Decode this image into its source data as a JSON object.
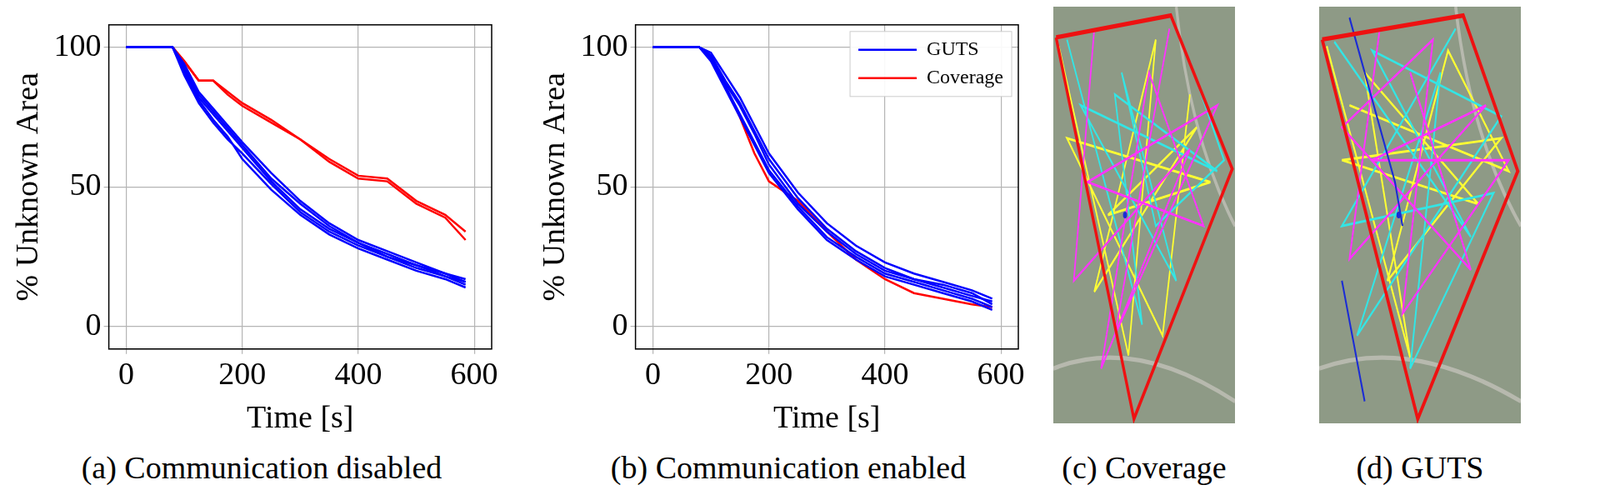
{
  "chart_data": [
    {
      "type": "line",
      "title": "(a) Communication disabled",
      "x_label": "Time [s]",
      "y_label": "% Unknown Area",
      "x": [
        0,
        80,
        100,
        125,
        150,
        175,
        200,
        250,
        300,
        350,
        400,
        450,
        500,
        550,
        585
      ],
      "xlim": [
        -30,
        630
      ],
      "xticks": [
        0,
        200,
        400,
        600
      ],
      "ylim": [
        -8,
        108
      ],
      "yticks": [
        0,
        50,
        100
      ],
      "grid": true,
      "series": [
        {
          "name": "GUTS",
          "color": "#0000ff",
          "values": [
            100,
            100,
            92,
            82,
            76,
            70,
            64,
            52,
            42,
            35,
            30,
            26,
            22,
            19,
            16
          ]
        },
        {
          "name": "GUTS",
          "color": "#0000ff",
          "values": [
            100,
            100,
            90,
            80,
            73,
            67,
            62,
            51,
            41,
            34,
            29,
            25,
            21,
            18,
            15
          ]
        },
        {
          "name": "GUTS",
          "color": "#0000ff",
          "values": [
            100,
            100,
            94,
            84,
            78,
            72,
            66,
            55,
            45,
            37,
            31,
            27,
            23,
            19,
            17
          ]
        },
        {
          "name": "GUTS",
          "color": "#0000ff",
          "values": [
            100,
            100,
            91,
            81,
            74,
            68,
            60,
            49,
            40,
            33,
            28,
            24,
            20,
            17,
            14
          ]
        },
        {
          "name": "GUTS",
          "color": "#0000ff",
          "values": [
            100,
            100,
            93,
            83,
            77,
            71,
            65,
            53,
            44,
            36,
            30,
            25,
            22,
            18,
            16
          ]
        },
        {
          "name": "Coverage",
          "color": "#ff0000",
          "values": [
            100,
            100,
            95,
            88,
            88,
            84,
            80,
            74,
            67,
            60,
            54,
            53,
            45,
            40,
            34
          ]
        },
        {
          "name": "Coverage",
          "color": "#ff0000",
          "values": [
            100,
            100,
            95,
            88,
            88,
            83,
            79,
            73,
            67,
            59,
            53,
            52,
            44,
            39,
            31
          ]
        }
      ]
    },
    {
      "type": "line",
      "title": "(b) Communication enabled",
      "x_label": "Time [s]",
      "y_label": "% Unknown Area",
      "x": [
        0,
        80,
        100,
        125,
        150,
        175,
        200,
        250,
        300,
        350,
        400,
        450,
        500,
        550,
        585
      ],
      "xlim": [
        -30,
        630
      ],
      "xticks": [
        0,
        200,
        400,
        600
      ],
      "ylim": [
        -8,
        108
      ],
      "yticks": [
        0,
        50,
        100
      ],
      "grid": true,
      "legend": "upper right",
      "series": [
        {
          "name": "GUTS",
          "color": "#0000ff",
          "values": [
            100,
            100,
            97,
            88,
            80,
            70,
            60,
            46,
            35,
            27,
            21,
            17,
            14,
            11,
            9
          ]
        },
        {
          "name": "GUTS",
          "color": "#0000ff",
          "values": [
            100,
            100,
            96,
            86,
            76,
            66,
            56,
            43,
            32,
            25,
            19,
            16,
            13,
            10,
            7
          ]
        },
        {
          "name": "GUTS",
          "color": "#0000ff",
          "values": [
            100,
            100,
            98,
            90,
            82,
            72,
            62,
            48,
            37,
            29,
            23,
            19,
            16,
            13,
            10
          ]
        },
        {
          "name": "GUTS",
          "color": "#0000ff",
          "values": [
            100,
            100,
            95,
            85,
            75,
            65,
            55,
            42,
            31,
            24,
            18,
            15,
            12,
            9,
            6
          ]
        },
        {
          "name": "GUTS",
          "color": "#0000ff",
          "values": [
            100,
            100,
            97,
            87,
            79,
            69,
            58,
            44,
            34,
            26,
            20,
            17,
            15,
            12,
            8
          ]
        },
        {
          "name": "Coverage",
          "color": "#ff0000",
          "values": [
            100,
            100,
            96,
            86,
            75,
            62,
            52,
            45,
            34,
            24,
            17,
            12,
            10,
            8,
            7
          ]
        }
      ]
    }
  ],
  "images": [
    {
      "caption": "(c) Coverage"
    },
    {
      "caption": "(d) GUTS"
    }
  ]
}
